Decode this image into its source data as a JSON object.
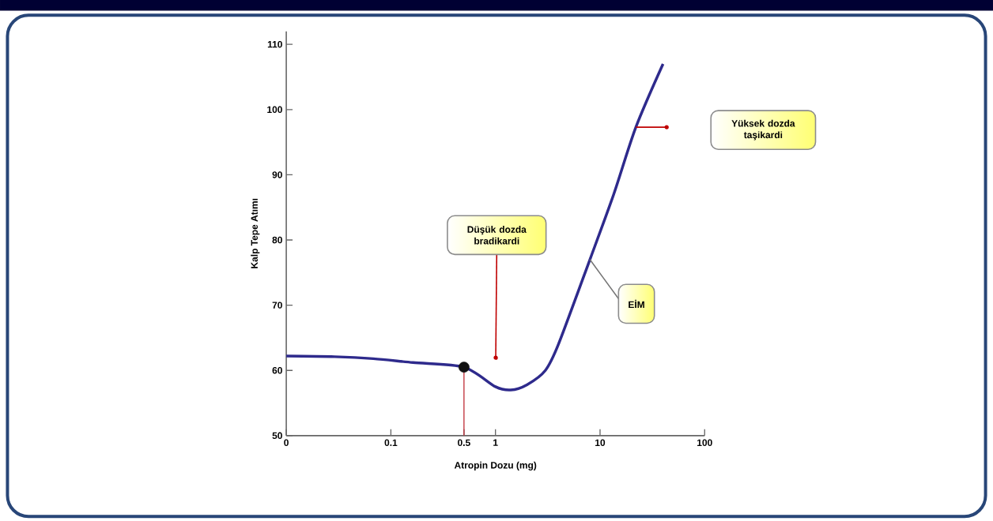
{
  "chart_data": {
    "type": "line",
    "xlabel": "Atropin Dozu (mg)",
    "ylabel": "Kalp Tepe Atımı",
    "log": "x",
    "xlim": [
      0.01,
      100
    ],
    "ylim": [
      50,
      112
    ],
    "xticks": [
      {
        "value": 0.01,
        "label": "0"
      },
      0.1,
      0.5,
      1,
      10,
      100
    ],
    "yticks": [
      50,
      60,
      70,
      80,
      90,
      100,
      110
    ],
    "series": [
      {
        "color": "#2e2a8c",
        "x": [
          0.01,
          0.029,
          0.068,
          0.163,
          0.5,
          1,
          1.4,
          2,
          3,
          4,
          8,
          13.5,
          22,
          40
        ],
        "values": [
          62.2,
          62.1,
          61.8,
          61.2,
          60.5,
          57.5,
          57.0,
          57.8,
          60,
          64,
          77,
          87,
          97.3,
          107
        ]
      },
      {
        "type": "scatter",
        "color": "#111111",
        "marker": "circle",
        "x": [
          0.5
        ],
        "values": [
          60.5
        ]
      }
    ],
    "ref_lines": [
      {
        "axis": "x",
        "value": 0.5,
        "color": "#c0303a"
      }
    ],
    "annotations": [
      "Düşük dozda bradikardi",
      "Yüksek dozda taşikardi",
      "EİM"
    ]
  }
}
